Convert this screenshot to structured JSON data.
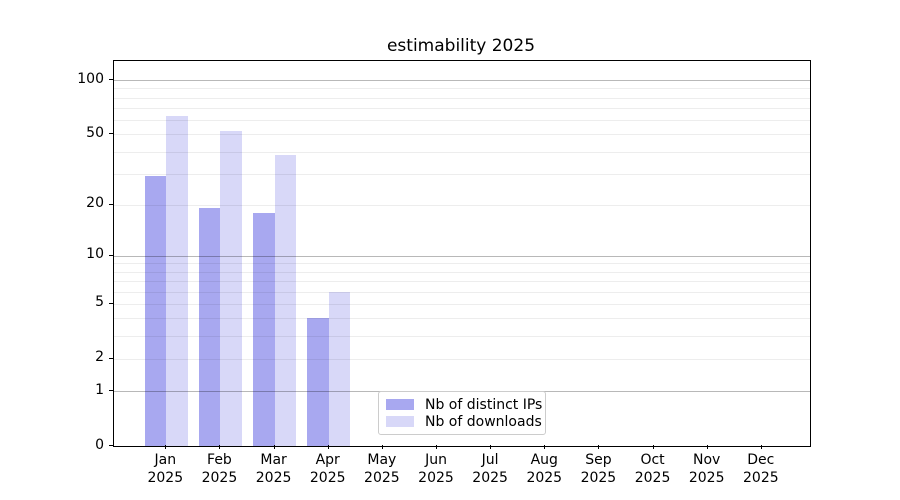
{
  "figure": {
    "background": "#ffffff"
  },
  "chart_data": {
    "type": "bar",
    "title": "estimability 2025",
    "categories": [
      "Jan 2025",
      "Feb 2025",
      "Mar 2025",
      "Apr 2025",
      "May 2025",
      "Jun 2025",
      "Jul 2025",
      "Aug 2025",
      "Sep 2025",
      "Oct 2025",
      "Nov 2025",
      "Dec 2025"
    ],
    "series": [
      {
        "name": "Nb of distinct IPs",
        "color": "#a8a8f0",
        "values": [
          29,
          19,
          18,
          4,
          0,
          0,
          0,
          0,
          0,
          0,
          0,
          0
        ]
      },
      {
        "name": "Nb of downloads",
        "color": "#d8d8f8",
        "values": [
          63,
          52,
          38,
          6,
          0,
          0,
          0,
          0,
          0,
          0,
          0,
          0
        ]
      }
    ],
    "xlabel": "",
    "ylabel": "",
    "yscale": "log1p",
    "ylim": [
      0,
      127
    ],
    "ytick_values": [
      100,
      50,
      20,
      10,
      5,
      2,
      1,
      0
    ],
    "ytick_labels": [
      "100",
      "50",
      "20",
      "10",
      "5",
      "2",
      "1",
      "0"
    ],
    "grid": {
      "on": true,
      "major_values": [
        1,
        10,
        100
      ],
      "minor_values": [
        2,
        3,
        4,
        5,
        6,
        7,
        8,
        9,
        20,
        30,
        40,
        50,
        60,
        70,
        80,
        90
      ]
    },
    "legend": {
      "position": "lower-center-inside"
    }
  }
}
